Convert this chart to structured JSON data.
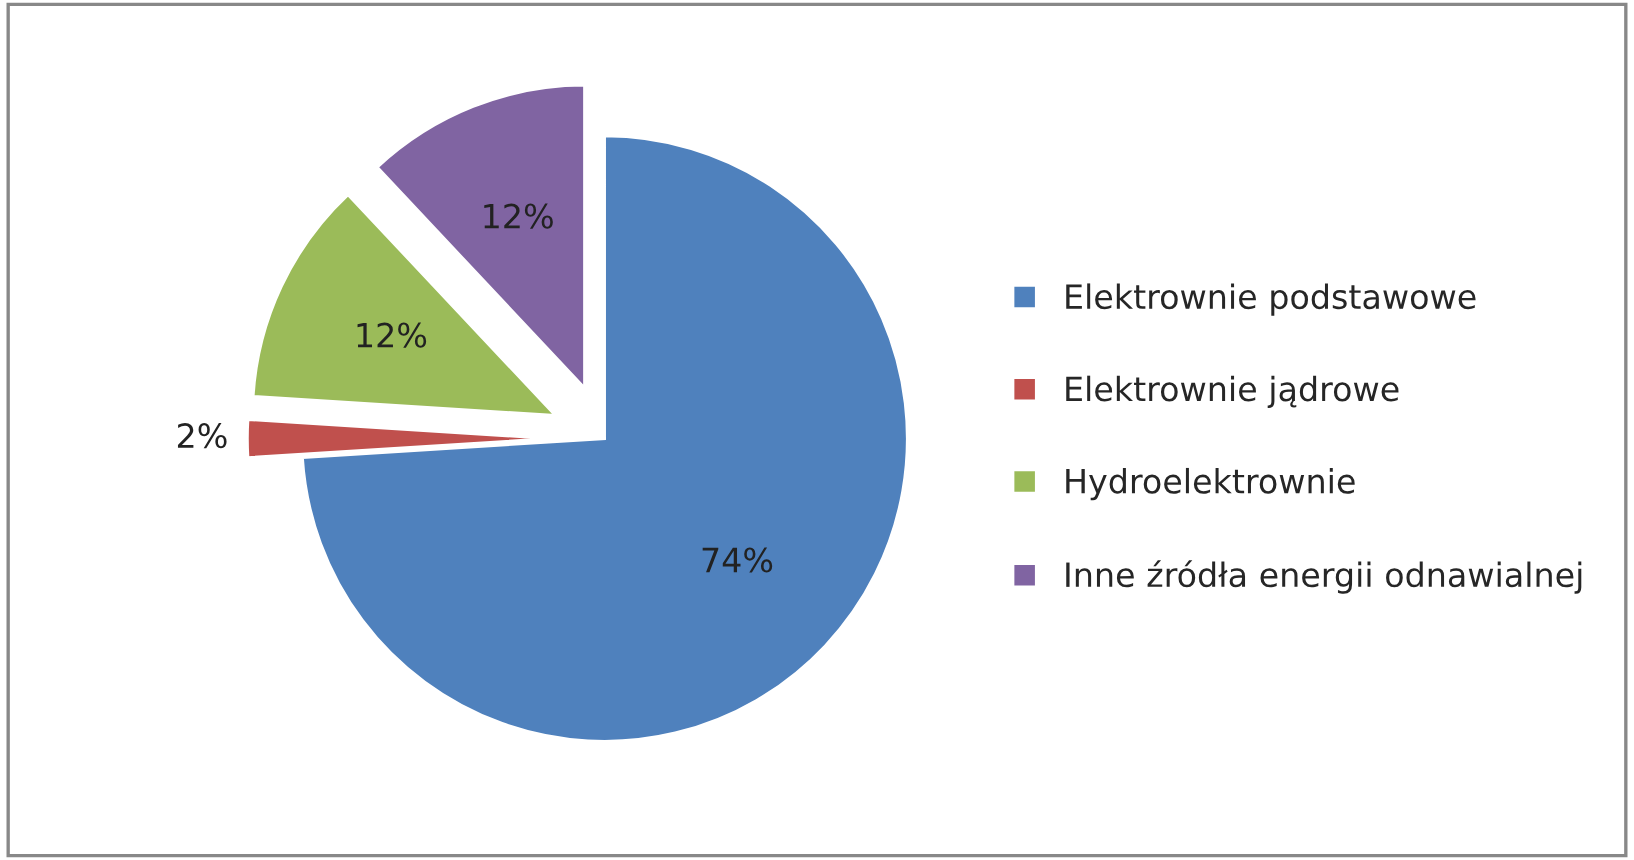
{
  "chart_data": {
    "type": "pie",
    "categories": [
      "Elektrownie podstawowe",
      "Elektrownie jądrowe",
      "Hydroelektrownie",
      "Inne źródła energii odnawialnej"
    ],
    "values": [
      74,
      2,
      12,
      12
    ],
    "colors": [
      "#4f81bd",
      "#c0504d",
      "#9bbb59",
      "#8064a2"
    ],
    "value_labels": [
      "74%",
      "2%",
      "12%",
      "12%"
    ],
    "legend": "right"
  }
}
